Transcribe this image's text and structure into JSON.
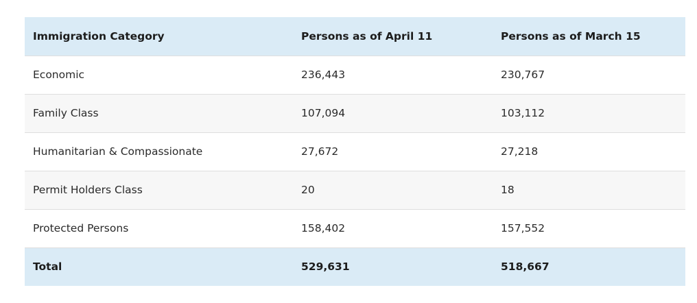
{
  "table": {
    "headers": [
      "Immigration Category",
      "Persons as of April 11",
      "Persons as of March 15"
    ],
    "rows": [
      [
        "Economic",
        "236,443",
        "230,767"
      ],
      [
        "Family Class",
        "107,094",
        "103,112"
      ],
      [
        "Humanitarian & Compassionate",
        "27,672",
        "27,218"
      ],
      [
        "Permit Holders Class",
        "20",
        "18"
      ],
      [
        "Protected Persons",
        "158,402",
        "157,552"
      ]
    ],
    "total": [
      "Total",
      "529,631",
      "518,667"
    ]
  },
  "colors": {
    "header_bg": "#daebf6",
    "stripe_bg": "#f7f7f7",
    "border": "#dedede"
  }
}
